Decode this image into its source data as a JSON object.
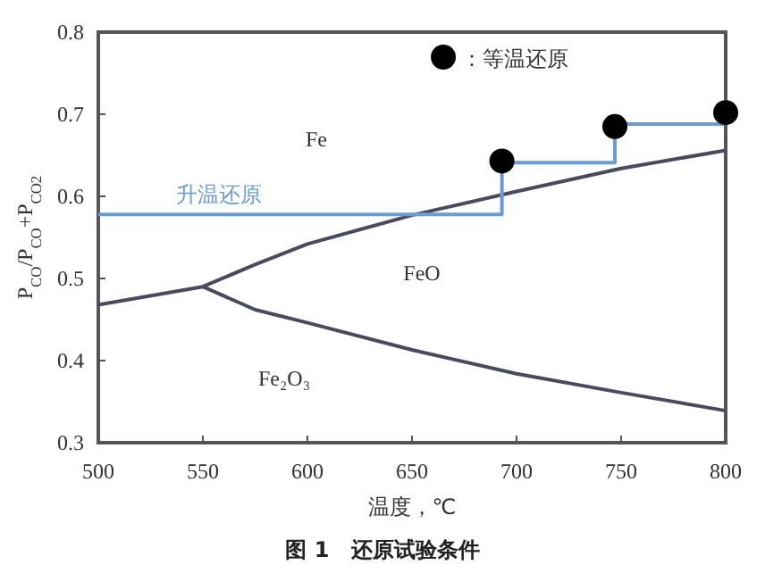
{
  "chart_data": {
    "type": "line",
    "xlabel": "温度，℃",
    "ylabel": "P$_{CO}$/P$_{CO}$+P$_{CO2}$",
    "xlim": [
      500,
      800
    ],
    "ylim": [
      0.3,
      0.8
    ],
    "xticks": [
      500,
      550,
      600,
      650,
      700,
      750,
      800
    ],
    "yticks": [
      0.3,
      0.4,
      0.5,
      0.6,
      0.7,
      0.8
    ],
    "grid": false,
    "legend": "top",
    "series": [
      {
        "color": "#4a4a5e",
        "x": [
          500,
          550,
          575,
          600,
          650,
          700,
          750,
          800
        ],
        "values": [
          0.468,
          0.49,
          0.517,
          0.542,
          0.577,
          0.606,
          0.634,
          0.656
        ]
      },
      {
        "color": "#4a4a5e",
        "x": [
          550,
          575,
          600,
          650,
          700,
          750,
          800
        ],
        "values": [
          0.49,
          0.462,
          0.446,
          0.413,
          0.384,
          0.361,
          0.339
        ]
      },
      {
        "type": "step",
        "name": "升温还原",
        "color": "#6a9bd1",
        "x": [
          500,
          693,
          747,
          800
        ],
        "values": [
          0.578,
          0.641,
          0.688,
          0.688
        ]
      },
      {
        "type": "scatter",
        "name": "：等温还原",
        "color": "#000000",
        "marker": "circle",
        "x": [
          693,
          747,
          800
        ],
        "values": [
          0.643,
          0.685,
          0.702
        ]
      }
    ],
    "annotations": [
      "Fe",
      "FeO",
      "Fe₂O₃",
      "图 1　还原试验条件"
    ]
  }
}
